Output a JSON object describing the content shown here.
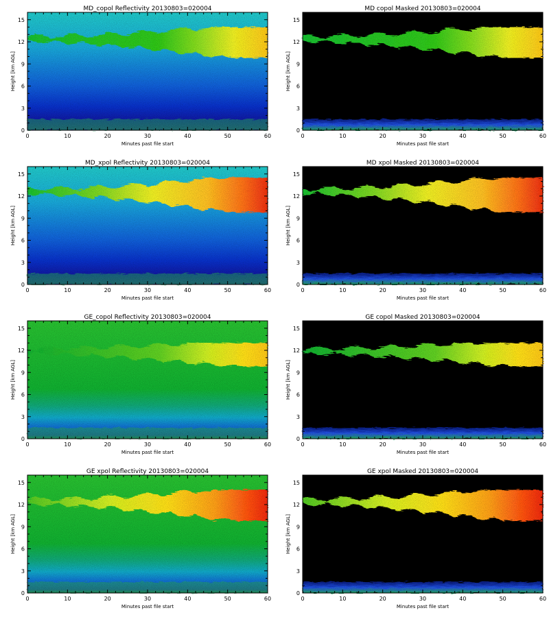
{
  "chart_data": [
    {
      "type": "heatmap",
      "title": "MD_copol Reflectivity 20130803=020004",
      "xlabel": "Minutes past file start",
      "ylabel": "Height [km AGL]",
      "xlim": [
        0,
        60
      ],
      "ylim": [
        0,
        16
      ],
      "x_ticks": [
        "0",
        "10",
        "20",
        "30",
        "40",
        "50",
        "60"
      ],
      "y_ticks": [
        "0",
        "3",
        "6",
        "9",
        "12",
        "15"
      ],
      "background": "clear-air noise (cyan→blue)",
      "masked": false,
      "colormap": "rainbow (blue → cyan → green → yellow → red)",
      "features": {
        "cloud_layer_km": [
          10,
          14
        ],
        "cloud_intensity": "strong (yellow→orange) after ~40 min",
        "surface_clutter_km": [
          0,
          1.5
        ]
      }
    },
    {
      "type": "heatmap",
      "title": "MD copol Masked 20130803=020004",
      "xlabel": "Minutes past file start",
      "ylabel": "Height [km AGL]",
      "xlim": [
        0,
        60
      ],
      "ylim": [
        0,
        16
      ],
      "x_ticks": [
        "0",
        "10",
        "20",
        "30",
        "40",
        "50",
        "60"
      ],
      "y_ticks": [
        "0",
        "3",
        "6",
        "9",
        "12",
        "15"
      ],
      "background": "black (masked)",
      "masked": true,
      "colormap": "rainbow (blue → cyan → green → yellow → red)",
      "features": {
        "cloud_layer_km": [
          10,
          14
        ],
        "cloud_intensity": "strong (yellow→orange) after ~40 min",
        "surface_clutter_km": [
          0,
          1.5
        ]
      }
    },
    {
      "type": "heatmap",
      "title": "MD_xpol Reflectivity 20130803=020004",
      "xlabel": "Minutes past file start",
      "ylabel": "Height [km AGL]",
      "xlim": [
        0,
        60
      ],
      "ylim": [
        0,
        16
      ],
      "x_ticks": [
        "0",
        "10",
        "20",
        "30",
        "40",
        "50",
        "60"
      ],
      "y_ticks": [
        "0",
        "3",
        "6",
        "9",
        "12",
        "15"
      ],
      "background": "clear-air noise (cyan→blue)",
      "masked": false,
      "colormap": "rainbow (blue → cyan → green → yellow → red)",
      "features": {
        "cloud_layer_km": [
          10,
          14.5
        ],
        "cloud_intensity": "very strong (orange→red) after ~45 min",
        "surface_clutter_km": [
          0,
          1.5
        ]
      }
    },
    {
      "type": "heatmap",
      "title": "MD xpol Masked 20130803=020004",
      "xlabel": "Minutes past file start",
      "ylabel": "Height [km AGL]",
      "xlim": [
        0,
        60
      ],
      "ylim": [
        0,
        16
      ],
      "x_ticks": [
        "0",
        "10",
        "20",
        "30",
        "40",
        "50",
        "60"
      ],
      "y_ticks": [
        "0",
        "3",
        "6",
        "9",
        "12",
        "15"
      ],
      "background": "black (masked)",
      "masked": true,
      "colormap": "rainbow (blue → cyan → green → yellow → red)",
      "features": {
        "cloud_layer_km": [
          10,
          14.5
        ],
        "cloud_intensity": "very strong (orange→red) after ~45 min",
        "surface_clutter_km": [
          0,
          1.5
        ]
      }
    },
    {
      "type": "heatmap",
      "title": "GE_copol Reflectivity 20130803=020004",
      "xlabel": "Minutes past file start",
      "ylabel": "Height [km AGL]",
      "xlim": [
        0,
        60
      ],
      "ylim": [
        0,
        16
      ],
      "x_ticks": [
        "0",
        "10",
        "20",
        "30",
        "40",
        "50",
        "60"
      ],
      "y_ticks": [
        "0",
        "3",
        "6",
        "9",
        "12",
        "15"
      ],
      "background": "clear-air noise (green, cyan/blue near surface)",
      "masked": false,
      "colormap": "rainbow (blue → cyan → green → yellow → red)",
      "features": {
        "cloud_layer_km": [
          10,
          13
        ],
        "cloud_intensity": "weak, visible mainly after ~45 min",
        "surface_clutter_km": [
          0,
          1.5
        ]
      }
    },
    {
      "type": "heatmap",
      "title": "GE copol Masked 20130803=020004",
      "xlabel": "Minutes past file start",
      "ylabel": "Height [km AGL]",
      "xlim": [
        0,
        60
      ],
      "ylim": [
        0,
        16
      ],
      "x_ticks": [
        "0",
        "10",
        "20",
        "30",
        "40",
        "50",
        "60"
      ],
      "y_ticks": [
        "0",
        "3",
        "6",
        "9",
        "12",
        "15"
      ],
      "background": "black (masked)",
      "masked": true,
      "colormap": "rainbow (blue → cyan → green → yellow → red)",
      "features": {
        "cloud_layer_km": [
          10,
          13
        ],
        "cloud_intensity": "weak, visible mainly after ~45 min",
        "surface_clutter_km": [
          0,
          1.5
        ]
      }
    },
    {
      "type": "heatmap",
      "title": "GE xpol Reflectivity 20130803=020004",
      "xlabel": "Minutes past file start",
      "ylabel": "Height [km AGL]",
      "xlim": [
        0,
        60
      ],
      "ylim": [
        0,
        16
      ],
      "x_ticks": [
        "0",
        "10",
        "20",
        "30",
        "40",
        "50",
        "60"
      ],
      "y_ticks": [
        "0",
        "3",
        "6",
        "9",
        "12",
        "15"
      ],
      "background": "clear-air noise (green, cyan/blue near surface)",
      "masked": false,
      "colormap": "rainbow (blue → cyan → green → yellow → red)",
      "features": {
        "cloud_layer_km": [
          10,
          14
        ],
        "cloud_intensity": "strong (orange→red) after ~45 min",
        "surface_clutter_km": [
          0,
          1.5
        ]
      }
    },
    {
      "type": "heatmap",
      "title": "GE xpol Masked 20130803=020004",
      "xlabel": "Minutes past file start",
      "ylabel": "Height [km AGL]",
      "xlim": [
        0,
        60
      ],
      "ylim": [
        0,
        16
      ],
      "x_ticks": [
        "0",
        "10",
        "20",
        "30",
        "40",
        "50",
        "60"
      ],
      "y_ticks": [
        "0",
        "3",
        "6",
        "9",
        "12",
        "15"
      ],
      "background": "black (masked)",
      "masked": true,
      "colormap": "rainbow (blue → cyan → green → yellow → red)",
      "features": {
        "cloud_layer_km": [
          10,
          14
        ],
        "cloud_intensity": "strong (orange→red) after ~45 min",
        "surface_clutter_km": [
          0,
          1.5
        ]
      }
    }
  ]
}
